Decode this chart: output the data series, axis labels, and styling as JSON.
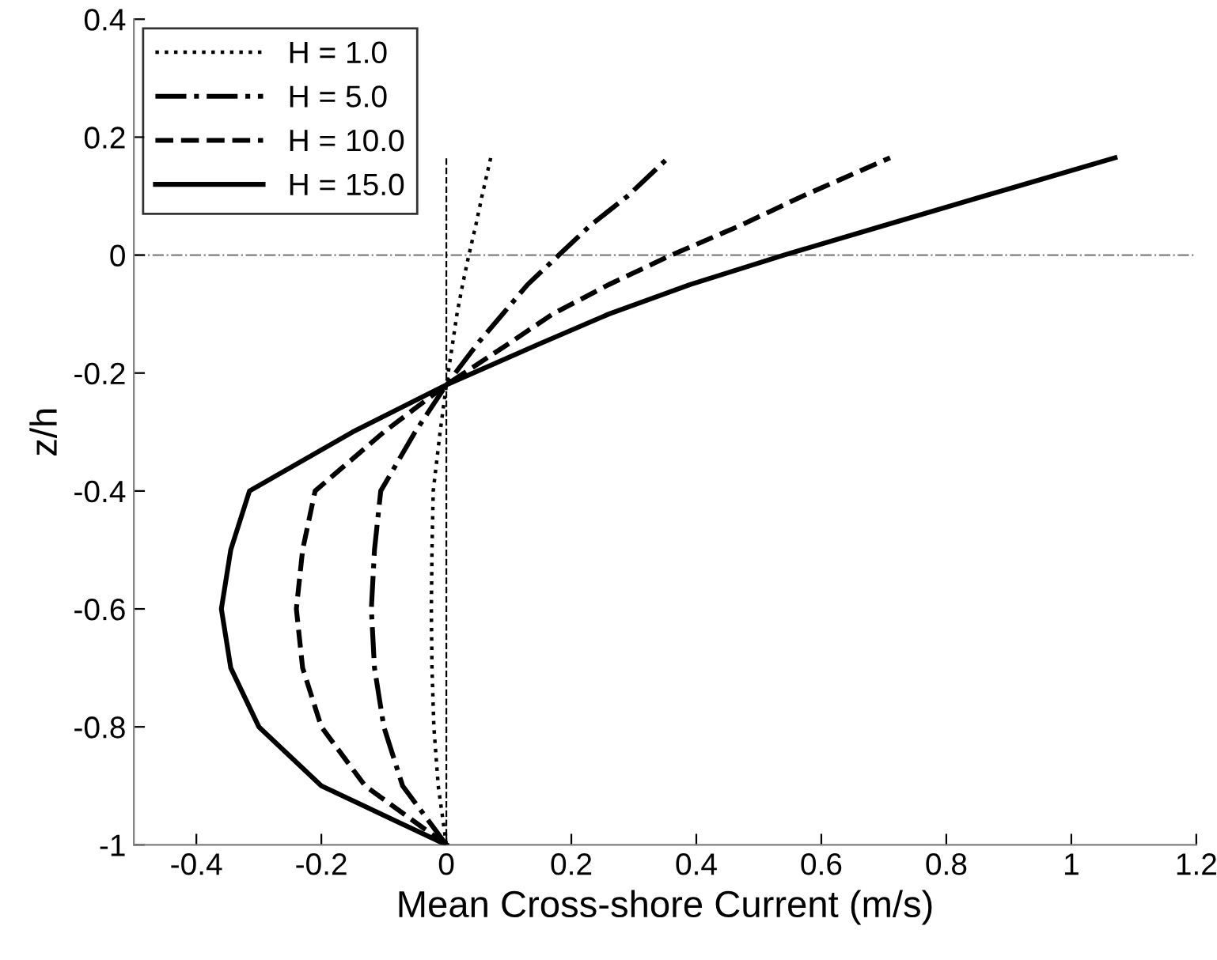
{
  "chart_data": {
    "type": "line",
    "xlabel": "Mean Cross-shore Current (m/s)",
    "ylabel": "z/h",
    "xlim": [
      -0.5,
      1.2
    ],
    "xticks": [
      -0.4,
      -0.2,
      0,
      0.2,
      0.4,
      0.6,
      0.8,
      1,
      1.2
    ],
    "ylim": [
      -1,
      0.4
    ],
    "yticks": [
      -1,
      -0.8,
      -0.6,
      -0.4,
      -0.2,
      0,
      0.2,
      0.4
    ],
    "grid": false,
    "legend": "top left",
    "marker": "none",
    "ref_lines": [
      {
        "axis": "y",
        "value": 0,
        "color": "#808080",
        "line_style": "dashdot"
      }
    ],
    "series": [
      {
        "name": "H = 1.0",
        "color": "#000000",
        "line_style": "dotted",
        "x": [
          0,
          -0.013,
          -0.02,
          -0.023,
          -0.024,
          -0.023,
          -0.021,
          -0.01,
          0,
          0.01,
          0.017,
          0.026,
          0.036,
          0.047,
          0.057,
          0.071
        ],
        "values": [
          -1,
          -0.9,
          -0.8,
          -0.7,
          -0.6,
          -0.5,
          -0.4,
          -0.3,
          -0.22,
          -0.15,
          -0.1,
          -0.05,
          0,
          0.05,
          0.1,
          0.165
        ]
      },
      {
        "name": "H = 5.0",
        "color": "#000000",
        "line_style": "dashdot",
        "x": [
          0,
          -0.07,
          -0.1,
          -0.115,
          -0.12,
          -0.115,
          -0.105,
          -0.05,
          0,
          0.05,
          0.09,
          0.13,
          0.18,
          0.23,
          0.29,
          0.355
        ],
        "values": [
          -1,
          -0.9,
          -0.8,
          -0.7,
          -0.6,
          -0.5,
          -0.4,
          -0.3,
          -0.22,
          -0.15,
          -0.1,
          -0.05,
          0,
          0.05,
          0.1,
          0.165
        ]
      },
      {
        "name": "H = 10.0",
        "color": "#000000",
        "line_style": "dashed",
        "x": [
          0,
          -0.13,
          -0.2,
          -0.23,
          -0.24,
          -0.23,
          -0.21,
          -0.1,
          0,
          0.1,
          0.17,
          0.26,
          0.36,
          0.47,
          0.57,
          0.71
        ],
        "values": [
          -1,
          -0.9,
          -0.8,
          -0.7,
          -0.6,
          -0.5,
          -0.4,
          -0.3,
          -0.22,
          -0.15,
          -0.1,
          -0.05,
          0,
          0.05,
          0.1,
          0.165
        ]
      },
      {
        "name": "H = 15.0",
        "color": "#000000",
        "line_style": "solid",
        "x": [
          0,
          -0.2,
          -0.3,
          -0.345,
          -0.36,
          -0.345,
          -0.315,
          -0.15,
          0,
          0.15,
          0.26,
          0.39,
          0.54,
          0.7,
          0.86,
          1.07
        ],
        "values": [
          -1,
          -0.9,
          -0.8,
          -0.7,
          -0.6,
          -0.5,
          -0.4,
          -0.3,
          -0.22,
          -0.15,
          -0.1,
          -0.05,
          0,
          0.05,
          0.1,
          0.165
        ]
      },
      {
        "color": "#000000",
        "line_style": "dashed",
        "x": [
          0,
          0
        ],
        "values": [
          -1,
          0.165
        ]
      }
    ]
  }
}
